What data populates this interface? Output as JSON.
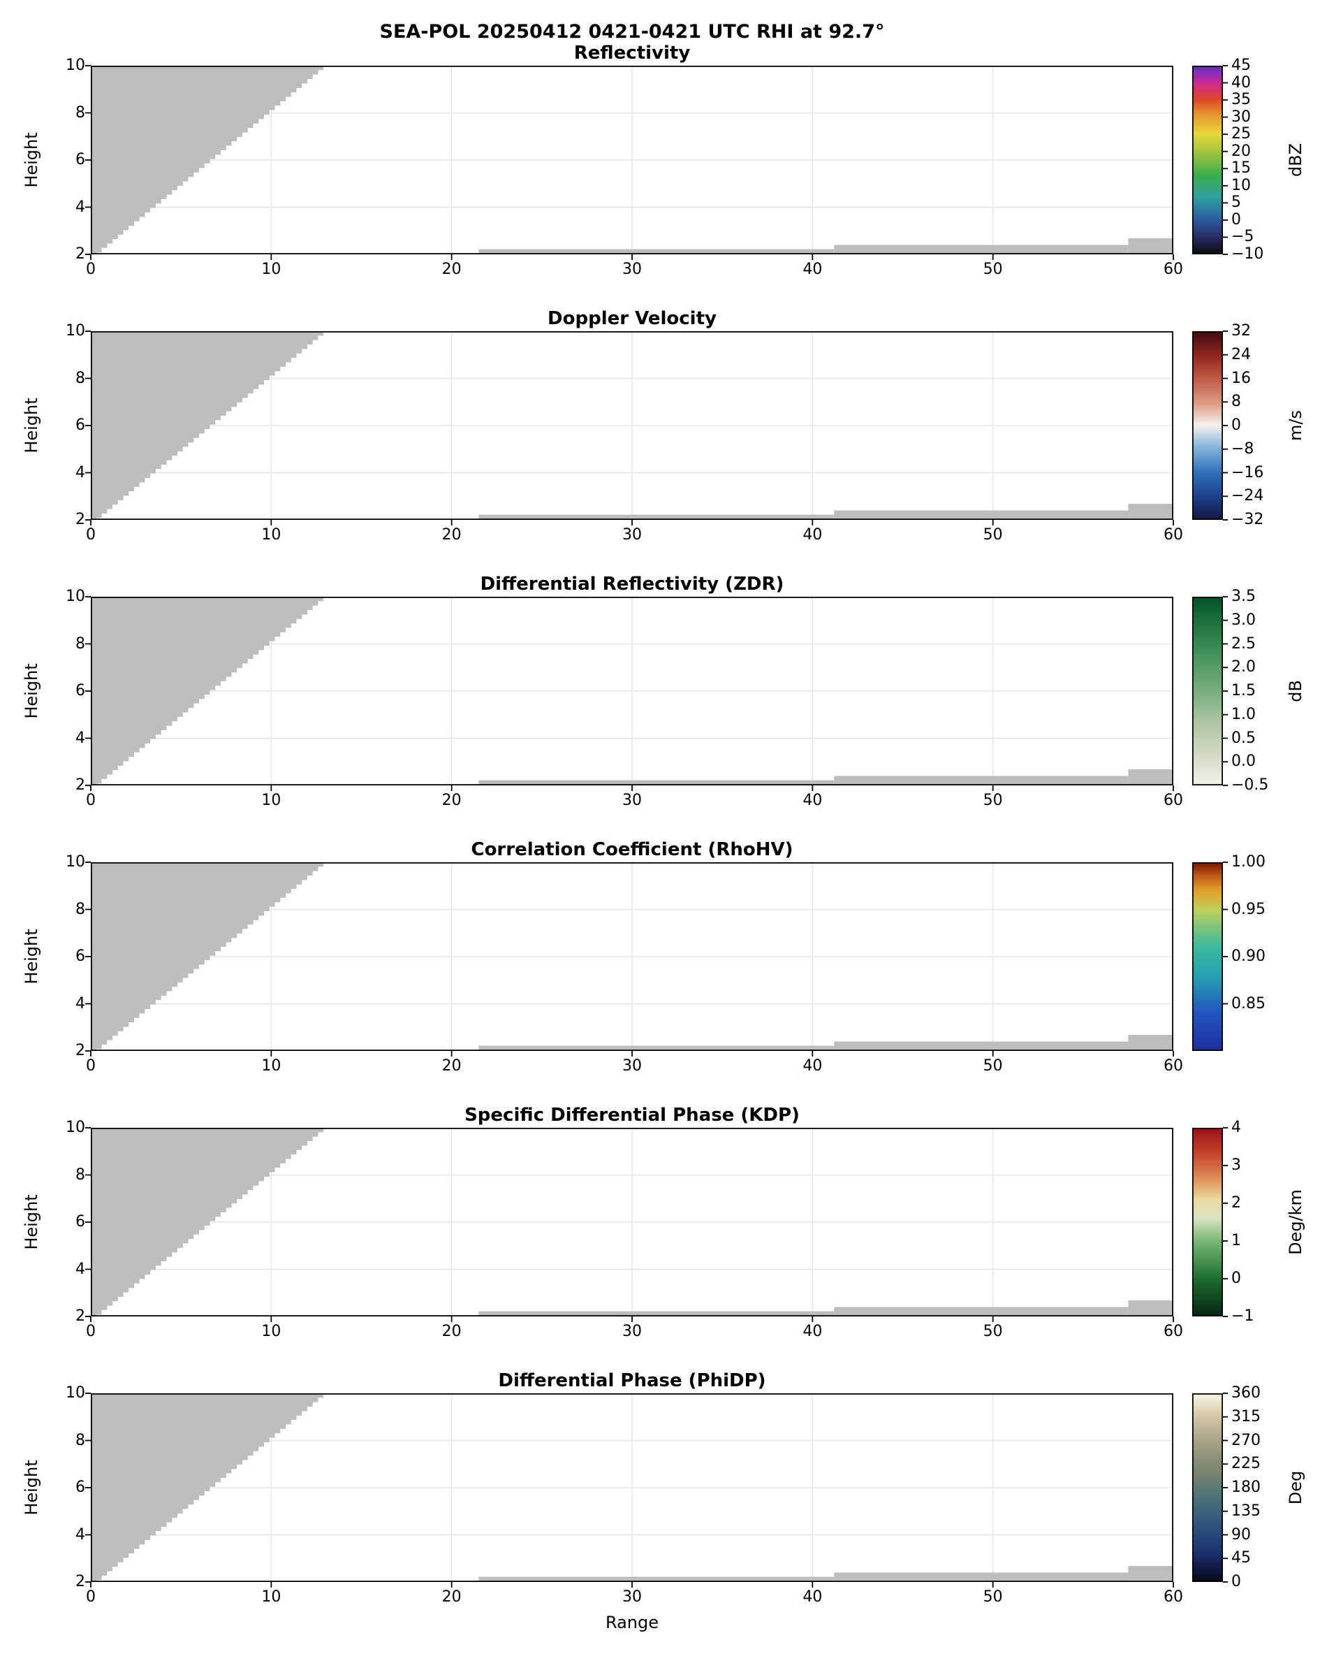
{
  "figure": {
    "suptitle": "SEA-POL 20250412 0421-0421 UTC RHI at 92.7°",
    "xlabel": "Range",
    "ylabel": "Height"
  },
  "chart_data": {
    "type": "heatmap",
    "description": "Six stacked RHI radar cross-section panels; only gray no-data/blanked regions are visible (no colored echo data plotted)",
    "x_range": [
      0,
      60
    ],
    "y_range": [
      2,
      10
    ],
    "x_ticks": [
      "0",
      "10",
      "20",
      "30",
      "40",
      "50",
      "60"
    ],
    "y_ticks": [
      "10",
      "8",
      "6",
      "4",
      "2"
    ],
    "grid": true,
    "no_data_color": "#bdbdbd",
    "no_data_regions": {
      "blanked_wedge": {
        "x_min": 0,
        "x_max": 12.9,
        "y_min": 2.05,
        "y_max": 10,
        "shape": "stepped diagonal wedge rising from lower-left"
      },
      "low_level_strips": [
        {
          "x_min": 21.5,
          "x_max": 41.2,
          "y_min": 2.0,
          "y_max": 2.22
        },
        {
          "x_min": 41.2,
          "x_max": 57.5,
          "y_min": 2.0,
          "y_max": 2.4
        },
        {
          "x_min": 57.5,
          "x_max": 60,
          "y_min": 2.0,
          "y_max": 2.68
        }
      ]
    },
    "panels": [
      {
        "title": "Reflectivity",
        "unit": "dBZ",
        "cbar_min": -10,
        "cbar_max": 45,
        "cbar_tick_values": [
          45,
          40,
          35,
          30,
          25,
          20,
          15,
          10,
          5,
          0,
          -5,
          -10
        ],
        "cbar_ticks": [
          "45",
          "40",
          "35",
          "30",
          "25",
          "20",
          "15",
          "10",
          "5",
          "0",
          "−5",
          "−10"
        ],
        "cbar_colors": [
          [
            0,
            "#0b0b0b"
          ],
          [
            0.08,
            "#26265c"
          ],
          [
            0.18,
            "#2b5aa0"
          ],
          [
            0.3,
            "#2fa0a0"
          ],
          [
            0.42,
            "#3dad4c"
          ],
          [
            0.54,
            "#a2c23e"
          ],
          [
            0.64,
            "#e6d839"
          ],
          [
            0.74,
            "#e6962f"
          ],
          [
            0.82,
            "#dd4a28"
          ],
          [
            0.9,
            "#d22a8a"
          ],
          [
            0.96,
            "#8c2fc0"
          ],
          [
            1,
            "#5e2a9c"
          ]
        ]
      },
      {
        "title": "Doppler Velocity",
        "unit": "m/s",
        "cbar_min": -32,
        "cbar_max": 32,
        "cbar_tick_values": [
          32,
          24,
          16,
          8,
          0,
          -8,
          -16,
          -24,
          -32
        ],
        "cbar_ticks": [
          "32",
          "24",
          "16",
          "8",
          "0",
          "−8",
          "−16",
          "−24",
          "−32"
        ],
        "cbar_colors": [
          [
            0,
            "#131740"
          ],
          [
            0.12,
            "#1d3f8d"
          ],
          [
            0.25,
            "#2f70ba"
          ],
          [
            0.38,
            "#81b1d8"
          ],
          [
            0.5,
            "#f4f1ee"
          ],
          [
            0.62,
            "#dd9a81"
          ],
          [
            0.75,
            "#bf5944"
          ],
          [
            0.88,
            "#8c231f"
          ],
          [
            1,
            "#3f0a10"
          ]
        ]
      },
      {
        "title": "Differential Reflectivity (ZDR)",
        "unit": "dB",
        "cbar_min": -0.5,
        "cbar_max": 3.5,
        "cbar_tick_values": [
          3.5,
          3,
          2.5,
          2,
          1.5,
          1,
          0.5,
          0,
          -0.5
        ],
        "cbar_ticks": [
          "3.5",
          "3.0",
          "2.5",
          "2.0",
          "1.5",
          "1.0",
          "0.5",
          "0.0",
          "−0.5"
        ],
        "cbar_colors": [
          [
            0,
            "#f2f1e9"
          ],
          [
            0.15,
            "#d7dbc5"
          ],
          [
            0.35,
            "#a7c39f"
          ],
          [
            0.55,
            "#69a775"
          ],
          [
            0.75,
            "#358951"
          ],
          [
            0.9,
            "#146a37"
          ],
          [
            1,
            "#084e27"
          ]
        ]
      },
      {
        "title": "Correlation Coefficient (RhoHV)",
        "unit": "",
        "cbar_min": 0.8,
        "cbar_max": 1,
        "cbar_tick_values": [
          1,
          0.95,
          0.9,
          0.85
        ],
        "cbar_ticks": [
          "1.00",
          "0.95",
          "0.90",
          "0.85"
        ],
        "cbar_colors": [
          [
            0,
            "#1d2e9d"
          ],
          [
            0.2,
            "#2256bf"
          ],
          [
            0.4,
            "#26a2af"
          ],
          [
            0.55,
            "#3cba9d"
          ],
          [
            0.65,
            "#7bc37e"
          ],
          [
            0.75,
            "#c1ce59"
          ],
          [
            0.85,
            "#e49f2b"
          ],
          [
            0.93,
            "#bf5919"
          ],
          [
            1,
            "#6f1505"
          ]
        ]
      },
      {
        "title": "Specific Differential Phase (KDP)",
        "unit": "Deg/km",
        "cbar_min": -1,
        "cbar_max": 4,
        "cbar_tick_values": [
          4,
          3,
          2,
          1,
          0,
          -1
        ],
        "cbar_ticks": [
          "4",
          "3",
          "2",
          "1",
          "0",
          "−1"
        ],
        "cbar_colors": [
          [
            0,
            "#05250f"
          ],
          [
            0.2,
            "#1d6d32"
          ],
          [
            0.4,
            "#79b773"
          ],
          [
            0.52,
            "#d8e3c3"
          ],
          [
            0.62,
            "#ebd89f"
          ],
          [
            0.72,
            "#df9659"
          ],
          [
            0.85,
            "#c8492d"
          ],
          [
            1,
            "#9d0f17"
          ]
        ]
      },
      {
        "title": "Differential Phase (PhiDP)",
        "unit": "Deg",
        "cbar_min": 0,
        "cbar_max": 360,
        "cbar_tick_values": [
          360,
          315,
          270,
          225,
          180,
          135,
          90,
          45,
          0
        ],
        "cbar_ticks": [
          "360",
          "315",
          "270",
          "225",
          "180",
          "135",
          "90",
          "45",
          "0"
        ],
        "cbar_colors": [
          [
            0,
            "#07071b"
          ],
          [
            0.15,
            "#1c2e6d"
          ],
          [
            0.3,
            "#2e547f"
          ],
          [
            0.45,
            "#4e7277"
          ],
          [
            0.6,
            "#7e8771"
          ],
          [
            0.75,
            "#a9a288"
          ],
          [
            0.88,
            "#d4c8a7"
          ],
          [
            1,
            "#faf6ea"
          ]
        ]
      }
    ]
  }
}
